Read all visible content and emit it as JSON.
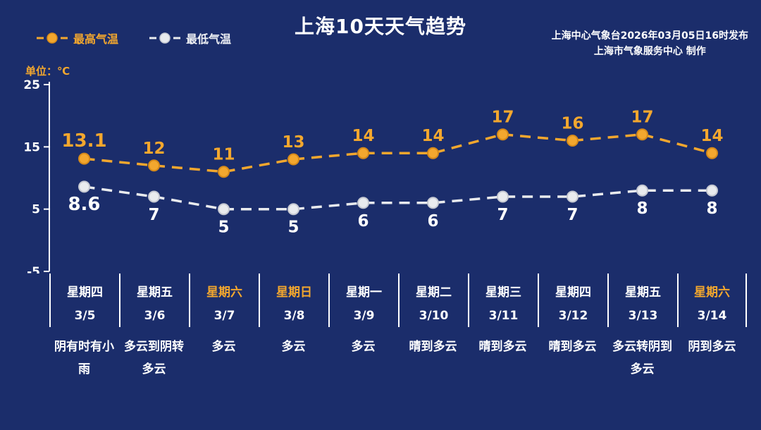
{
  "header": {
    "title": "上海10天天气趋势",
    "credit_line1": "上海中心气象台2026年03月05日16时发布",
    "credit_line2": "上海市气象服务中心  制作",
    "unit_label": "单位：℃"
  },
  "legend": {
    "high_label": "最高气温",
    "low_label": "最低气温"
  },
  "colors": {
    "background": "#1b2d6b",
    "high": "#f3a72e",
    "high_stroke": "#d68a1a",
    "low": "#e9ebee",
    "low_stroke": "#c6c9d2",
    "text": "#ffffff"
  },
  "chart_data": {
    "type": "line",
    "title": "上海10天天气趋势",
    "xlabel": "",
    "ylabel": "单位：℃",
    "ylim": [
      -5,
      25
    ],
    "yticks": [
      25,
      15,
      5,
      -5
    ],
    "grid": false,
    "legend_position": "top-left",
    "line_style": "dashed",
    "categories": [
      "3/5",
      "3/6",
      "3/7",
      "3/8",
      "3/9",
      "3/10",
      "3/11",
      "3/12",
      "3/13",
      "3/14"
    ],
    "series": [
      {
        "name": "最高气温",
        "values": [
          13.1,
          12,
          11,
          13,
          14,
          14,
          17,
          16,
          17,
          14
        ],
        "color": "#f3a72e",
        "stroke": "#d68a1a",
        "label_color": "#f3a72e"
      },
      {
        "name": "最低气温",
        "values": [
          8.6,
          7,
          5,
          5,
          6,
          6,
          7,
          7,
          8,
          8
        ],
        "color": "#e9ebee",
        "stroke": "#c6c9d2",
        "label_color": "#ffffff"
      }
    ]
  },
  "days": [
    {
      "weekday": "星期四",
      "date": "3/5",
      "weather": "阴有时有小雨",
      "weekend": false
    },
    {
      "weekday": "星期五",
      "date": "3/6",
      "weather": "多云到阴转多云",
      "weekend": false
    },
    {
      "weekday": "星期六",
      "date": "3/7",
      "weather": "多云",
      "weekend": true
    },
    {
      "weekday": "星期日",
      "date": "3/8",
      "weather": "多云",
      "weekend": true
    },
    {
      "weekday": "星期一",
      "date": "3/9",
      "weather": "多云",
      "weekend": false
    },
    {
      "weekday": "星期二",
      "date": "3/10",
      "weather": "晴到多云",
      "weekend": false
    },
    {
      "weekday": "星期三",
      "date": "3/11",
      "weather": "晴到多云",
      "weekend": false
    },
    {
      "weekday": "星期四",
      "date": "3/12",
      "weather": "晴到多云",
      "weekend": false
    },
    {
      "weekday": "星期五",
      "date": "3/13",
      "weather": "多云转阴到多云",
      "weekend": false
    },
    {
      "weekday": "星期六",
      "date": "3/14",
      "weather": "阴到多云",
      "weekend": true
    }
  ]
}
